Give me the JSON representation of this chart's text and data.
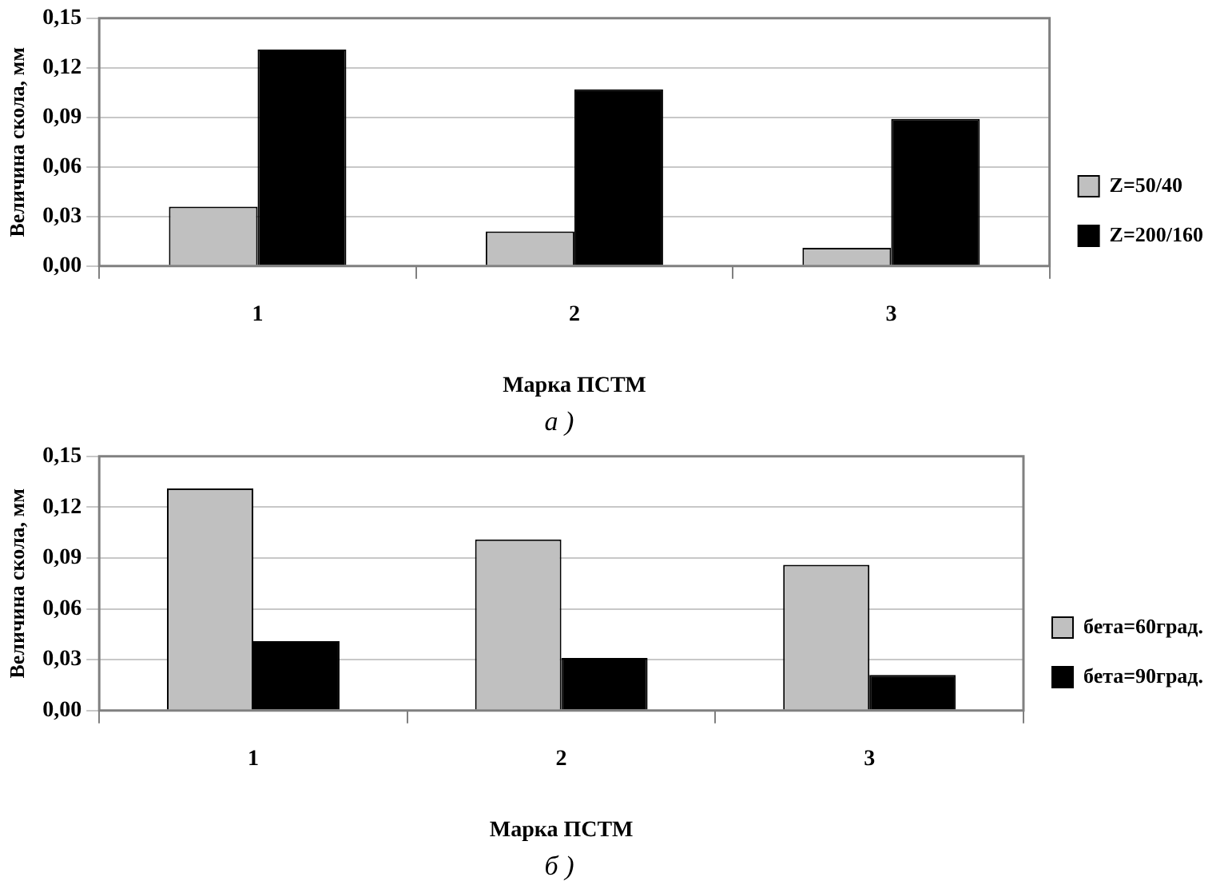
{
  "chart_data": [
    {
      "type": "bar",
      "xlabel": "Марка ПСТМ",
      "ylabel": "Величина скола, мм",
      "categories": [
        "1",
        "2",
        "3"
      ],
      "series": [
        {
          "name": "Z=50/40",
          "color": "#c0c0c0",
          "values": [
            0.036,
            0.021,
            0.011
          ]
        },
        {
          "name": "Z=200/160",
          "color": "#000000",
          "values": [
            0.131,
            0.107,
            0.089
          ]
        }
      ],
      "ylim": [
        0,
        0.15
      ],
      "yticks": [
        {
          "value": 0,
          "label": "0,00"
        },
        {
          "value": 0.03,
          "label": "0,03"
        },
        {
          "value": 0.06,
          "label": "0,06"
        },
        {
          "value": 0.09,
          "label": "0,09"
        },
        {
          "value": 0.12,
          "label": "0,12"
        },
        {
          "value": 0.15,
          "label": "0,15"
        }
      ],
      "grid": "y",
      "legend": "right",
      "annotations": [
        "а )"
      ]
    },
    {
      "type": "bar",
      "xlabel": "Марка ПСТМ",
      "ylabel": "Величина скола, мм",
      "categories": [
        "1",
        "2",
        "3"
      ],
      "series": [
        {
          "name": "бета=60град.",
          "color": "#c0c0c0",
          "values": [
            0.131,
            0.101,
            0.086
          ]
        },
        {
          "name": "бета=90град.",
          "color": "#000000",
          "values": [
            0.041,
            0.031,
            0.021
          ]
        }
      ],
      "ylim": [
        0,
        0.15
      ],
      "yticks": [
        {
          "value": 0,
          "label": "0,00"
        },
        {
          "value": 0.03,
          "label": "0,03"
        },
        {
          "value": 0.06,
          "label": "0,06"
        },
        {
          "value": 0.09,
          "label": "0,09"
        },
        {
          "value": 0.12,
          "label": "0,12"
        },
        {
          "value": 0.15,
          "label": "0,15"
        }
      ],
      "grid": "y",
      "legend": "right",
      "annotations": [
        "б )"
      ]
    }
  ]
}
